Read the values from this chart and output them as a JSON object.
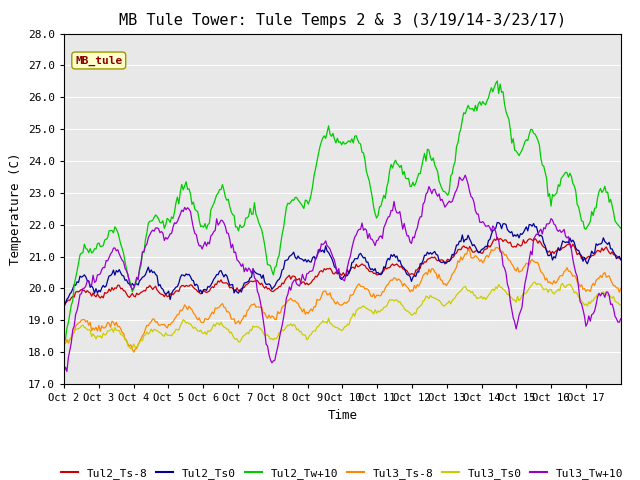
{
  "title": "MB Tule Tower: Tule Temps 2 & 3 (3/19/14-3/23/17)",
  "xlabel": "Time",
  "ylabel": "Temperature (C)",
  "ylim": [
    17.0,
    28.0
  ],
  "yticks": [
    17.0,
    18.0,
    19.0,
    20.0,
    21.0,
    22.0,
    23.0,
    24.0,
    25.0,
    26.0,
    27.0,
    28.0
  ],
  "xtick_labels": [
    "Oct 2",
    "Oct 3",
    "Oct 4",
    "Oct 5",
    "Oct 6",
    "Oct 7",
    "Oct 8",
    "Oct 9",
    "Oct 10",
    "Oct 11",
    "Oct 12",
    "Oct 13",
    "Oct 14",
    "Oct 15",
    "Oct 16",
    "Oct 17"
  ],
  "series": {
    "Tul2_Ts-8": {
      "color": "#cc0000"
    },
    "Tul2_Ts0": {
      "color": "#000099"
    },
    "Tul2_Tw+10": {
      "color": "#00cc00"
    },
    "Tul3_Ts-8": {
      "color": "#ff8800"
    },
    "Tul3_Ts0": {
      "color": "#cccc00"
    },
    "Tul3_Tw+10": {
      "color": "#9900cc"
    }
  },
  "annotation_text": "MB_tule",
  "background_color": "#e8e8e8",
  "grid_color": "white",
  "title_fontsize": 11,
  "red_means": [
    19.7,
    19.9,
    19.9,
    19.9,
    20.0,
    20.1,
    20.1,
    20.3,
    20.6,
    20.6,
    20.6,
    21.0,
    21.3,
    21.5,
    21.3,
    21.1
  ],
  "blue_means": [
    19.9,
    20.2,
    20.4,
    20.1,
    20.2,
    20.2,
    20.3,
    21.2,
    20.6,
    20.8,
    20.6,
    21.1,
    21.5,
    22.0,
    21.3,
    21.2
  ],
  "green_means": [
    19.0,
    22.0,
    20.5,
    22.7,
    22.5,
    22.6,
    21.0,
    23.3,
    25.2,
    22.8,
    23.9,
    23.4,
    26.5,
    25.0,
    23.5,
    22.5
  ],
  "orange_means": [
    18.5,
    19.0,
    18.3,
    19.1,
    19.2,
    19.2,
    19.3,
    19.5,
    19.7,
    20.0,
    20.2,
    20.4,
    21.2,
    20.8,
    20.4,
    20.2
  ],
  "yellow_means": [
    18.5,
    18.7,
    18.3,
    18.7,
    18.8,
    18.6,
    18.6,
    18.7,
    18.9,
    19.5,
    19.4,
    19.7,
    19.9,
    19.8,
    20.1,
    19.7
  ],
  "purple_means": [
    17.8,
    21.0,
    20.5,
    22.2,
    21.8,
    21.5,
    18.0,
    21.0,
    20.8,
    22.0,
    22.0,
    23.2,
    22.7,
    19.2,
    22.7,
    19.4
  ]
}
